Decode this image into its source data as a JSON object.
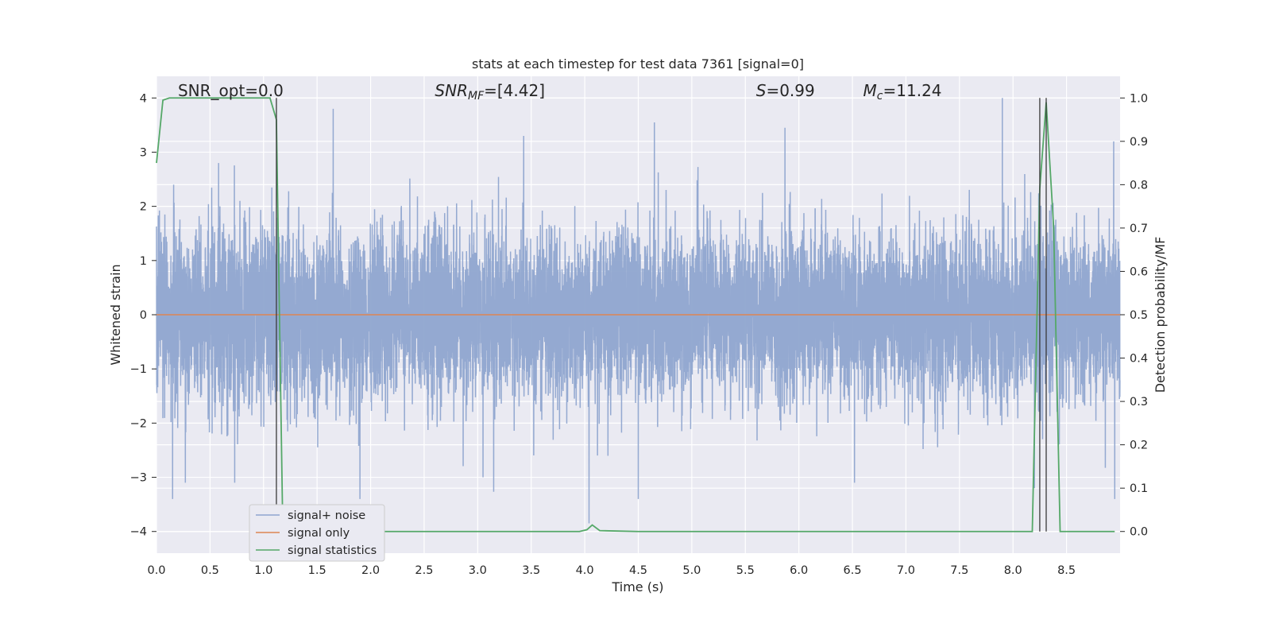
{
  "chart_data": {
    "type": "line",
    "title": "stats at each timestep for test data 7361 [signal=0]",
    "xlabel": "Time (s)",
    "ylabel": "Whitened strain",
    "y2label": "Detection probability/MF",
    "xlim": [
      0.0,
      9.0
    ],
    "ylim": [
      -4.4,
      4.4
    ],
    "y2lim": [
      -0.05,
      1.05
    ],
    "xticks": [
      0.0,
      0.5,
      1.0,
      1.5,
      2.0,
      2.5,
      3.0,
      3.5,
      4.0,
      4.5,
      5.0,
      5.5,
      6.0,
      6.5,
      7.0,
      7.5,
      8.0,
      8.5
    ],
    "xtick_labels": [
      "0.0",
      "0.5",
      "1.0",
      "1.5",
      "2.0",
      "2.5",
      "3.0",
      "3.5",
      "4.0",
      "4.5",
      "5.0",
      "5.5",
      "6.0",
      "6.5",
      "7.0",
      "7.5",
      "8.0",
      "8.5"
    ],
    "yticks": [
      -4,
      -3,
      -2,
      -1,
      0,
      1,
      2,
      3,
      4
    ],
    "ytick_labels": [
      "−4",
      "−3",
      "−2",
      "−1",
      "0",
      "1",
      "2",
      "3",
      "4"
    ],
    "y2ticks": [
      0.0,
      0.1,
      0.2,
      0.3,
      0.4,
      0.5,
      0.6,
      0.7,
      0.8,
      0.9,
      1.0
    ],
    "y2tick_labels": [
      "0.0",
      "0.1",
      "0.2",
      "0.3",
      "0.4",
      "0.5",
      "0.6",
      "0.7",
      "0.8",
      "0.9",
      "1.0"
    ],
    "grid": true,
    "legend_position": "lower-left",
    "annotations": [
      {
        "text": "SNR_opt=0.0",
        "x": 0.2
      },
      {
        "text": "SNR_MF=[4.42]",
        "x": 2.6
      },
      {
        "text": "S=0.99",
        "x": 5.6
      },
      {
        "text": "M_c=11.24",
        "x": 6.6
      }
    ],
    "vlines": [
      1.12,
      8.25,
      8.31
    ],
    "series": [
      {
        "name": "signal+ noise",
        "color": "#8fa5cf",
        "kind": "noise",
        "sample_rate": 1024,
        "std": 0.78,
        "peaks_up": [
          [
            0.16,
            2.4
          ],
          [
            0.58,
            2.8
          ],
          [
            1.65,
            3.8
          ],
          [
            3.43,
            3.3
          ],
          [
            4.65,
            3.55
          ],
          [
            5.87,
            3.45
          ],
          [
            7.9,
            4.0
          ],
          [
            8.94,
            3.2
          ]
        ],
        "peaks_down": [
          [
            0.15,
            -3.4
          ],
          [
            0.27,
            -3.1
          ],
          [
            0.73,
            -3.1
          ],
          [
            1.9,
            -3.4
          ],
          [
            3.05,
            -3.0
          ],
          [
            4.04,
            -3.85
          ],
          [
            4.5,
            -3.4
          ],
          [
            6.52,
            -3.1
          ],
          [
            8.2,
            -3.2
          ],
          [
            8.95,
            -3.4
          ]
        ]
      },
      {
        "name": "signal only",
        "color": "#dd8452",
        "x": [
          0.0,
          9.0
        ],
        "y": [
          0.0,
          0.0
        ]
      },
      {
        "name": "signal statistics",
        "color": "#55a868",
        "axis": "right",
        "x": [
          0.0,
          0.06,
          0.12,
          0.18,
          0.5,
          1.0,
          1.06,
          1.12,
          1.18,
          1.24,
          1.5,
          3.5,
          3.95,
          4.02,
          4.07,
          4.14,
          4.5,
          8.18,
          8.25,
          8.31,
          8.38,
          8.44,
          8.5,
          8.95
        ],
        "y": [
          0.85,
          0.995,
          1.0,
          1.0,
          1.0,
          1.0,
          1.0,
          0.95,
          0.0,
          0.0,
          0.0,
          0.0,
          0.0,
          0.004,
          0.015,
          0.002,
          0.0,
          0.0,
          0.79,
          0.99,
          0.7,
          0.0,
          0.0,
          0.0
        ]
      }
    ]
  }
}
